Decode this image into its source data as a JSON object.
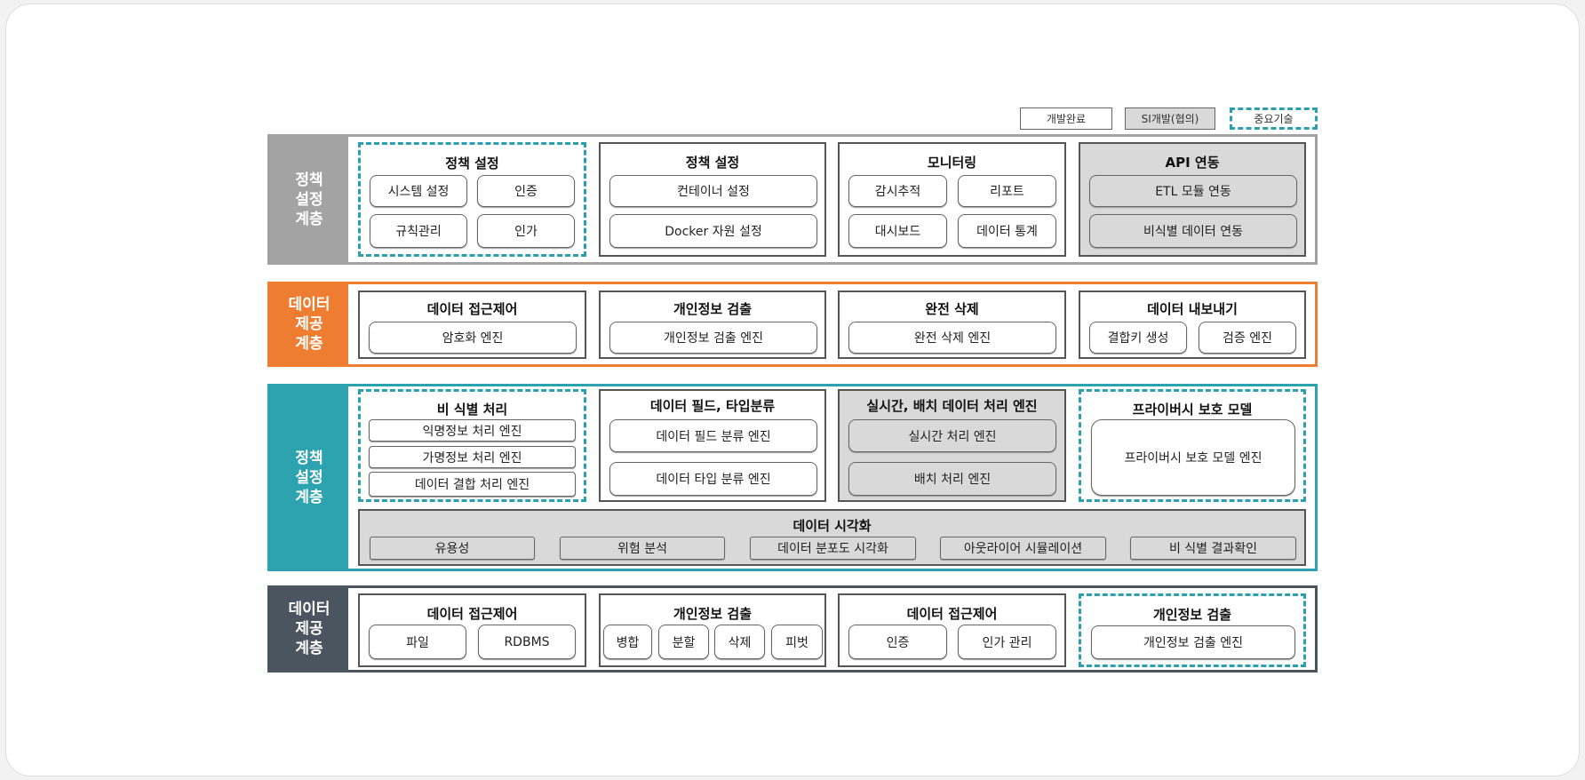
{
  "legend": {
    "done": "개발완료",
    "si": "SI개발(협의)",
    "key": "중요기술"
  },
  "colors": {
    "layer1": "#a3a3a3",
    "layer2": "#ee7d31",
    "layer3": "#2ea3b0",
    "layer4": "#4b5560",
    "dashed": "#2a9fb0",
    "si_fill": "#d9d9d9"
  },
  "layer1": {
    "label": "정책\n설정\n계층",
    "policy_key": {
      "title": "정책 설정",
      "items": [
        "시스템 설정",
        "인증",
        "규칙관리",
        "인가"
      ]
    },
    "policy": {
      "title": "정책 설정",
      "items": [
        "컨테이너 설정",
        "Docker 자원 설정"
      ]
    },
    "monitoring": {
      "title": "모니터링",
      "items": [
        "감시추적",
        "리포트",
        "대시보드",
        "데이터 통계"
      ]
    },
    "api": {
      "title": "API 연동",
      "items": [
        "ETL 모듈 연동",
        "비식별 데이터 연동"
      ]
    }
  },
  "layer2": {
    "label": "데이터\n제공\n계층",
    "access": {
      "title": "데이터 접근제어",
      "items": [
        "암호화 엔진"
      ]
    },
    "pii": {
      "title": "개인정보 검출",
      "items": [
        "개인정보 검출 엔진"
      ]
    },
    "delete": {
      "title": "완전 삭제",
      "items": [
        "완전 삭제 엔진"
      ]
    },
    "export": {
      "title": "데이터 내보내기",
      "items": [
        "결합키 생성",
        "검증 엔진"
      ]
    }
  },
  "layer3": {
    "label": "정책\n설정\n계층",
    "deid": {
      "title": "비 식별 처리",
      "items": [
        "익명정보 처리 엔진",
        "가명정보 처리 엔진",
        "데이터 결합 처리 엔진"
      ]
    },
    "field": {
      "title": "데이터 필드, 타입분류",
      "items": [
        "데이터 필드 분류 엔진",
        "데이터 타입 분류 엔진"
      ]
    },
    "realtime": {
      "title": "실시간, 배치 데이터 처리 엔진",
      "items": [
        "실시간 처리 엔진",
        "배치 처리 엔진"
      ]
    },
    "privacy": {
      "title": "프라이버시 보호 모델",
      "items": [
        "프라이버시 보호 모델 엔진"
      ]
    },
    "viz": {
      "title": "데이터 시각화",
      "items": [
        "유용성",
        "위험 분석",
        "데이터 분포도 시각화",
        "아웃라이어 시뮬레이션",
        "비 식별 결과확인"
      ]
    }
  },
  "layer4": {
    "label": "데이터\n제공\n계층",
    "access": {
      "title": "데이터 접근제어",
      "items": [
        "파일",
        "RDBMS"
      ]
    },
    "pii": {
      "title": "개인정보 검출",
      "items": [
        "병합",
        "분할",
        "삭제",
        "피벗"
      ]
    },
    "access2": {
      "title": "데이터 접근제어",
      "items": [
        "인증",
        "인가 관리"
      ]
    },
    "pii_key": {
      "title": "개인정보 검출",
      "items": [
        "개인정보 검출 엔진"
      ]
    }
  }
}
